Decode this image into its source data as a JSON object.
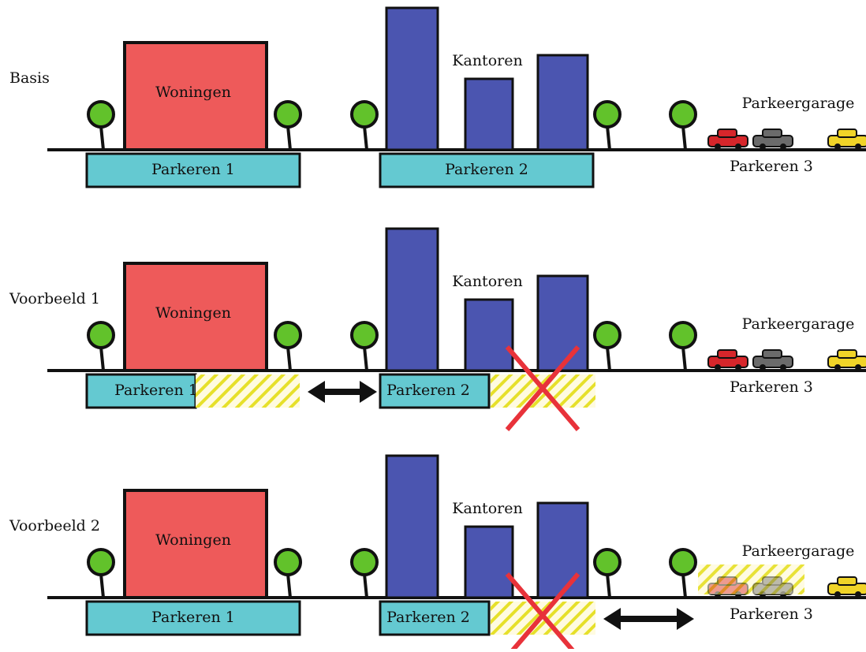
{
  "panels": [
    {
      "label": "Basis",
      "houses": "Woningen",
      "offices": "Kantoren",
      "garage": "Parkeergarage",
      "parking": [
        "Parkeren 1",
        "Parkeren 2",
        "Parkeren 3"
      ]
    },
    {
      "label": "Voorbeeld 1",
      "houses": "Woningen",
      "offices": "Kantoren",
      "garage": "Parkeergarage",
      "parking": [
        "Parkeren 1",
        "Parkeren 2",
        "Parkeren 3"
      ]
    },
    {
      "label": "Voorbeeld 2",
      "houses": "Woningen",
      "offices": "Kantoren",
      "garage": "Parkeergarage",
      "parking": [
        "Parkeren 1",
        "Parkeren 2",
        "Parkeren 3"
      ]
    }
  ]
}
